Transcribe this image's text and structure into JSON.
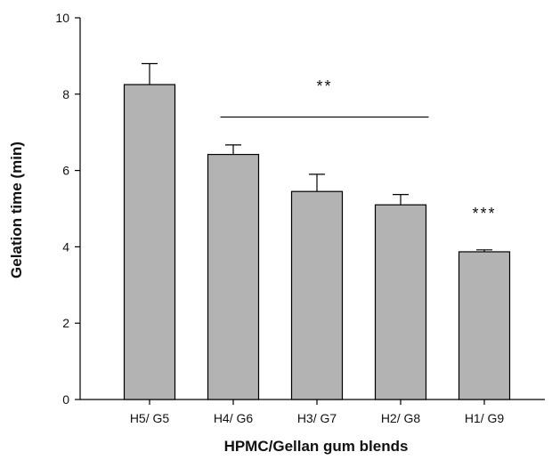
{
  "chart_data": {
    "type": "bar",
    "categories": [
      "H5/ G5",
      "H4/ G6",
      "H3/ G7",
      "H2/ G8",
      "H1/ G9"
    ],
    "values": [
      8.25,
      6.42,
      5.45,
      5.1,
      3.87
    ],
    "errors": [
      0.55,
      0.25,
      0.45,
      0.27,
      0.05
    ],
    "xlabel": "HPMC/Gellan gum blends",
    "ylabel": "Gelation time (min)",
    "ylim": [
      0,
      10
    ],
    "yticks": [
      0,
      2,
      4,
      6,
      8,
      10
    ],
    "bar_color": "#b3b3b3",
    "annotations": [
      {
        "text": "**",
        "type": "bracket",
        "from_category": "H4/ G6",
        "to_category": "H2/ G8",
        "y": 7.4,
        "label_y": 8.3
      },
      {
        "text": "***",
        "type": "label",
        "category": "H1/ G9",
        "y": 4.9
      }
    ]
  }
}
